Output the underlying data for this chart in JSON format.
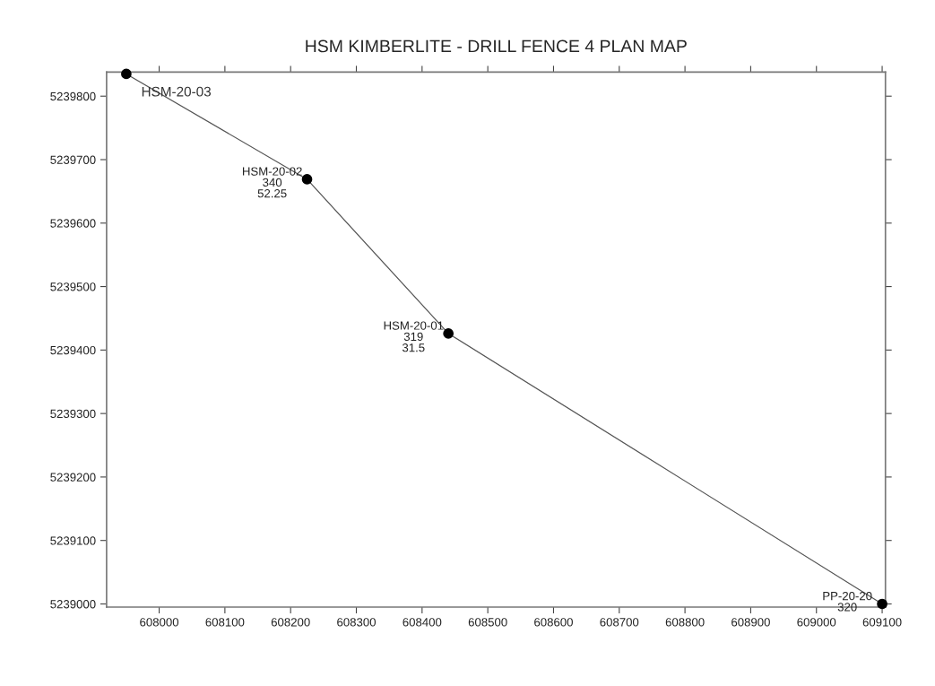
{
  "chart_data": {
    "type": "line",
    "title": "HSM KIMBERLITE - DRILL FENCE 4 PLAN MAP",
    "x": [
      607950,
      608225,
      608440,
      609100
    ],
    "series": [
      {
        "color": "#000000",
        "values": [
          5239835,
          5239669,
          5239426,
          5239000
        ]
      }
    ],
    "marker": "circle",
    "line_style": "solid",
    "grid": false,
    "legend": false,
    "xlim": [
      607920,
      609105
    ],
    "ylim": [
      5238995,
      5239838
    ],
    "xticks": [
      608000,
      608100,
      608200,
      608300,
      608400,
      608500,
      608600,
      608700,
      608800,
      608900,
      609000,
      609100
    ],
    "yticks": [
      5239000,
      5239100,
      5239200,
      5239300,
      5239400,
      5239500,
      5239600,
      5239700,
      5239800
    ],
    "annotations": [
      {
        "text": "HSM-20-03",
        "x": 607950,
        "y": 5239835
      },
      {
        "text": "HSM-20-02\n340\n52.25",
        "x": 608225,
        "y": 5239669
      },
      {
        "text": "HSM-20-01\n319\n31.5",
        "x": 608440,
        "y": 5239426
      },
      {
        "text": "PP-20-20\n320",
        "x": 609100,
        "y": 5239000
      }
    ]
  }
}
